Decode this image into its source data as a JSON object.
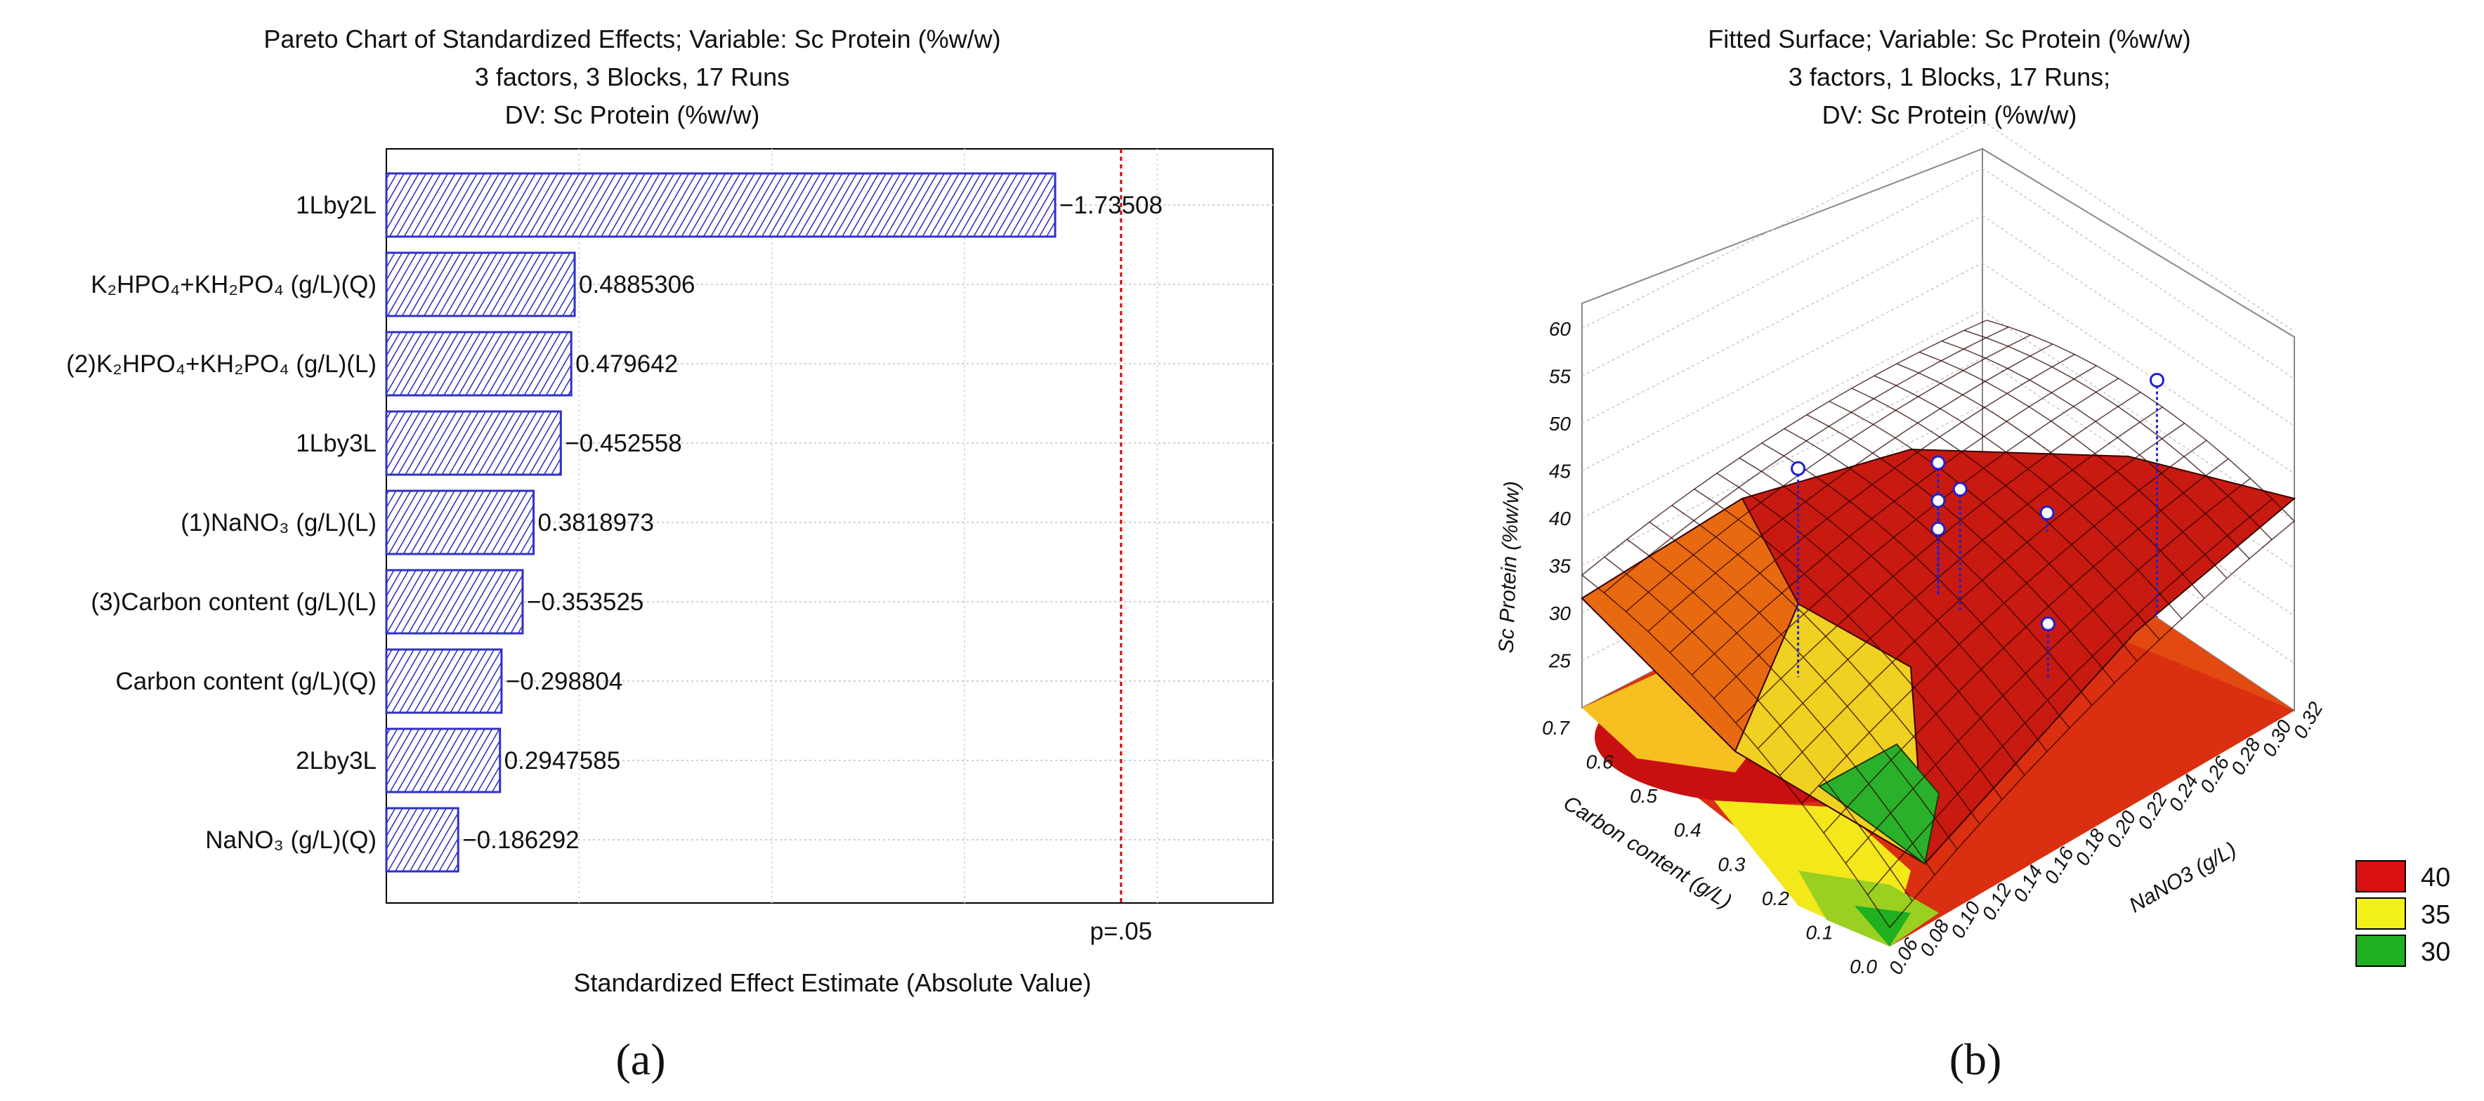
{
  "chart_data": [
    {
      "type": "bar",
      "orientation": "horizontal",
      "panel_label": "(a)",
      "title": [
        "Pareto Chart of Standardized Effects; Variable: Sc Protein (%w/w)",
        "3 factors, 3 Blocks, 17 Runs",
        "DV: Sc Protein (%w/w)"
      ],
      "xlabel": "Standardized Effect Estimate (Absolute Value)",
      "ylabel": "",
      "xlim": [
        0,
        2.3
      ],
      "significance_line": {
        "label": "p=.05",
        "value": 1.906
      },
      "bar_fill": "#3030c8",
      "threshold_color": "#e00000",
      "categories": [
        "1Lby2L",
        "K₂HPO₄+KH₂PO₄ (g/L)(Q)",
        "(2)K₂HPO₄+KH₂PO₄ (g/L)(L)",
        "1Lby3L",
        "(1)NaNO₃ (g/L)(L)",
        "(3)Carbon content (g/L)(L)",
        "Carbon content (g/L)(Q)",
        "2Lby3L",
        "NaNO₃ (g/L)(Q)"
      ],
      "values": [
        1.73508,
        0.4885306,
        0.479642,
        0.452558,
        0.3818973,
        0.353525,
        0.298804,
        0.2947585,
        0.186292
      ],
      "value_labels": [
        "−1.73508",
        "0.4885306",
        "0.479642",
        "−0.452558",
        "0.3818973",
        "−0.353525",
        "−0.298804",
        "0.2947585",
        "−0.186292"
      ]
    },
    {
      "type": "surface3d",
      "panel_label": "(b)",
      "title": [
        "Fitted Surface; Variable: Sc Protein (%w/w)",
        "3 factors, 1 Blocks, 17 Runs;",
        "DV: Sc Protein (%w/w)"
      ],
      "zlabel": "Sc Protein (%w/w)",
      "xlabel": "Carbon content (g/L)",
      "ylabel": "NaNO3 (g/L)",
      "xlim": [
        0.0,
        0.7
      ],
      "ylim": [
        0.06,
        0.32
      ],
      "zlim": [
        20,
        60
      ],
      "x_ticks": [
        "0.0",
        "0.1",
        "0.2",
        "0.3",
        "0.4",
        "0.5",
        "0.6",
        "0.7"
      ],
      "y_ticks": [
        "0.06",
        "0.08",
        "0.10",
        "0.12",
        "0.14",
        "0.16",
        "0.18",
        "0.20",
        "0.22",
        "0.24",
        "0.26",
        "0.28",
        "0.30",
        "0.32"
      ],
      "z_ticks": [
        "25",
        "30",
        "35",
        "40",
        "45",
        "50",
        "55",
        "60"
      ],
      "observed_points": [
        {
          "x": 0.35,
          "y": 0.1,
          "z": 54
        },
        {
          "x": 0.35,
          "y": 0.19,
          "z": 46
        },
        {
          "x": 0.3,
          "y": 0.19,
          "z": 45
        },
        {
          "x": 0.35,
          "y": 0.19,
          "z": 42
        },
        {
          "x": 0.35,
          "y": 0.19,
          "z": 39
        },
        {
          "x": 0.1,
          "y": 0.26,
          "z": 57
        },
        {
          "x": 0.1,
          "y": 0.19,
          "z": 38
        },
        {
          "x": 0.35,
          "y": 0.26,
          "z": 34
        }
      ],
      "legend": {
        "position": "right",
        "entries": [
          {
            "label": "40",
            "color": "#d81010"
          },
          {
            "label": "35",
            "color": "#f2f21a"
          },
          {
            "label": "30",
            "color": "#20b020"
          }
        ]
      }
    }
  ]
}
